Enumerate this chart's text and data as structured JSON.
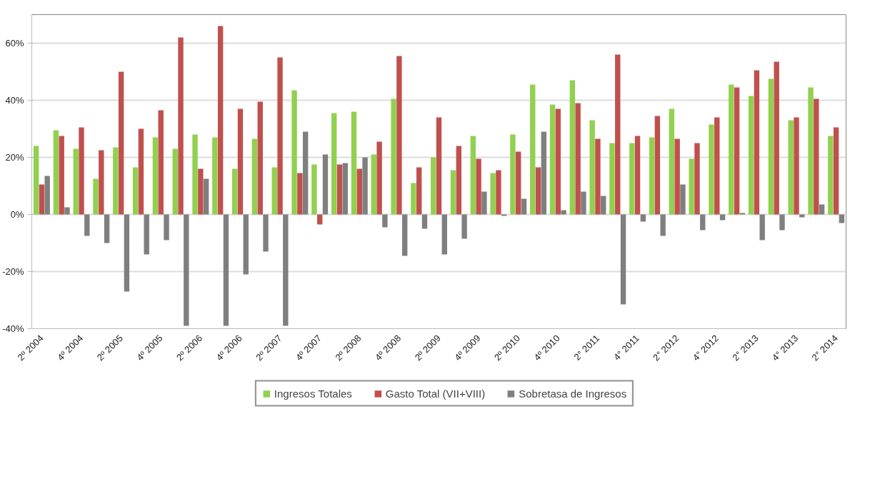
{
  "chart_data": {
    "type": "bar",
    "categories": [
      "2º 2004",
      null,
      "4º 2004",
      null,
      "2º 2005",
      null,
      "4º 2005",
      null,
      "2º 2006",
      null,
      "4º 2006",
      null,
      "2º 2007",
      null,
      "4º 2007",
      null,
      "2º 2008",
      null,
      "4º 2008",
      null,
      "2º 2009",
      null,
      "4º 2009",
      null,
      "2º 2010",
      null,
      "4º 2010",
      null,
      "2° 2011",
      null,
      "4° 2011",
      null,
      "2° 2012",
      null,
      "4° 2012",
      null,
      "2° 2013",
      null,
      "4° 2013",
      null,
      "2° 2014"
    ],
    "series": [
      {
        "name": "Ingresos Totales",
        "color": "#92d050",
        "values": [
          24,
          29.5,
          23,
          12.5,
          23.5,
          16.5,
          27,
          23,
          28,
          27,
          16,
          26.5,
          16.5,
          43.5,
          17.5,
          35.5,
          36,
          21,
          40.5,
          11,
          20,
          15.5,
          27.5,
          14.5,
          28,
          45.5,
          38.5,
          47,
          33,
          25,
          25,
          27,
          37,
          19.5,
          31.5,
          45.5,
          41.5,
          47.5,
          33,
          44.5,
          27.5
        ]
      },
      {
        "name": "Gasto Total (VII+VIII)",
        "color": "#c0504d",
        "values": [
          10.5,
          27.5,
          30.5,
          22.5,
          50,
          30,
          36.5,
          62,
          16,
          66,
          37,
          39.5,
          55,
          14.5,
          -3.5,
          17.5,
          16,
          25.5,
          55.5,
          16.5,
          34,
          24,
          19.5,
          15.5,
          22,
          16.5,
          37,
          39,
          26.5,
          56,
          27.5,
          34.5,
          26.5,
          25,
          34,
          44.5,
          50.5,
          53.5,
          34,
          40.5,
          30.5
        ]
      },
      {
        "name": "Sobretasa de Ingresos",
        "color": "#7f7f7f",
        "values": [
          13.5,
          2.5,
          -7.5,
          -10,
          -27,
          -14,
          -9,
          -39,
          12.5,
          -39,
          -21,
          -13,
          -39,
          29,
          21,
          18,
          20,
          -4.5,
          -14.5,
          -5,
          -14,
          -8.5,
          8,
          -0.5,
          5.5,
          29,
          1.5,
          8,
          6.5,
          -31.5,
          -2.5,
          -7.5,
          10.5,
          -5.5,
          -2,
          0.5,
          -9,
          -5.5,
          -1,
          3.5,
          -3
        ]
      }
    ],
    "ylim": [
      -40,
      70
    ],
    "yticks": [
      {
        "value": -40,
        "label": "-40%"
      },
      {
        "value": -20,
        "label": "-20%"
      },
      {
        "value": 0,
        "label": "0%"
      },
      {
        "value": 20,
        "label": "20%"
      },
      {
        "value": 40,
        "label": "40%"
      },
      {
        "value": 60,
        "label": "60%"
      }
    ],
    "grid": "y",
    "legend": "bottom"
  }
}
